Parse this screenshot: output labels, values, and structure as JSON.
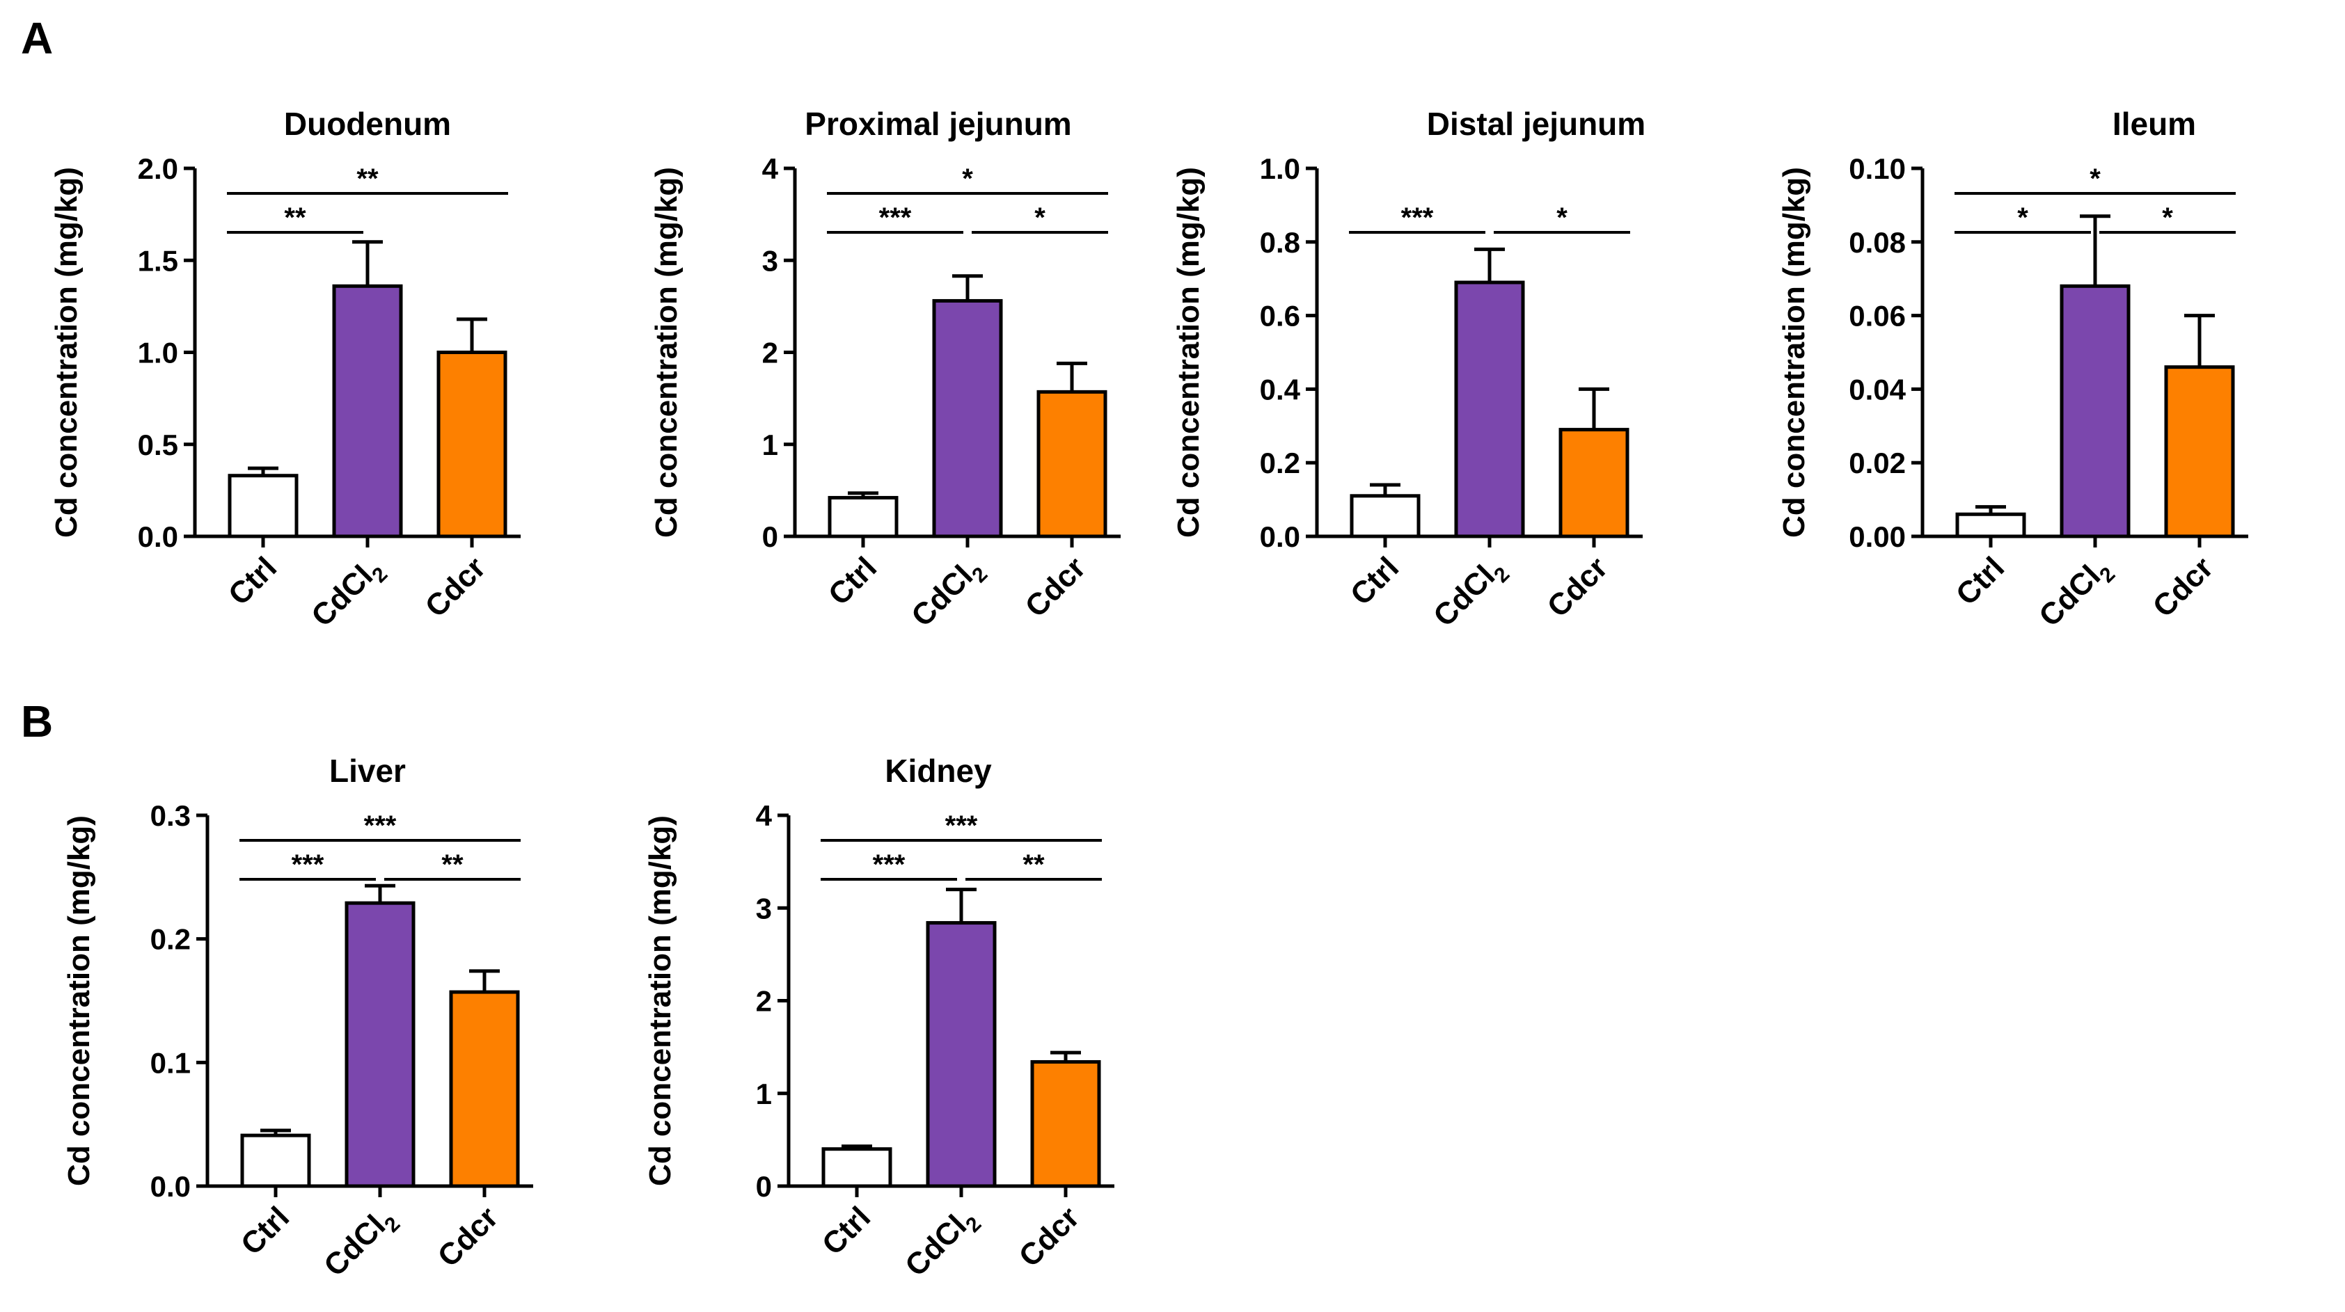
{
  "panels": [
    {
      "label": "A"
    },
    {
      "label": "B"
    }
  ],
  "colors": {
    "ctrl": "#ffffff",
    "cdcl2": "#7b47ad",
    "cdcr": "#fd8000"
  },
  "chart_data": [
    {
      "type": "bar",
      "title": "Duodenum",
      "ylabel": "Cd concentration (mg/kg)",
      "categories": [
        "Ctrl",
        "CdCl2",
        "Cdcr"
      ],
      "values": [
        0.33,
        1.36,
        1.0
      ],
      "errors": [
        0.04,
        0.24,
        0.18
      ],
      "ylim": [
        0,
        2.0
      ],
      "yticks": [
        "0.0",
        "0.5",
        "1.0",
        "1.5",
        "2.0"
      ],
      "ytick_values": [
        0,
        0.5,
        1.0,
        1.5,
        2.0
      ],
      "significance": [
        {
          "from": 0,
          "to": 1,
          "label": "**",
          "level": 1
        },
        {
          "from": 0,
          "to": 2,
          "label": "**",
          "level": 2
        }
      ]
    },
    {
      "type": "bar",
      "title": "Proximal jejunum",
      "ylabel": "Cd concentration (mg/kg)",
      "categories": [
        "Ctrl",
        "CdCl2",
        "Cdcr"
      ],
      "values": [
        0.42,
        2.56,
        1.57
      ],
      "errors": [
        0.05,
        0.27,
        0.31
      ],
      "ylim": [
        0,
        4
      ],
      "yticks": [
        "0",
        "1",
        "2",
        "3",
        "4"
      ],
      "ytick_values": [
        0,
        1,
        2,
        3,
        4
      ],
      "significance": [
        {
          "from": 0,
          "to": 1,
          "label": "***",
          "level": 1
        },
        {
          "from": 1,
          "to": 2,
          "label": "*",
          "level": 1
        },
        {
          "from": 0,
          "to": 2,
          "label": "*",
          "level": 2
        }
      ]
    },
    {
      "type": "bar",
      "title": "Distal jejunum",
      "ylabel": "Cd concentration (mg/kg)",
      "categories": [
        "Ctrl",
        "CdCl2",
        "Cdcr"
      ],
      "values": [
        0.11,
        0.69,
        0.29
      ],
      "errors": [
        0.03,
        0.09,
        0.11
      ],
      "ylim": [
        0,
        1.0
      ],
      "yticks": [
        "0.0",
        "0.2",
        "0.4",
        "0.6",
        "0.8",
        "1.0"
      ],
      "ytick_values": [
        0,
        0.2,
        0.4,
        0.6,
        0.8,
        1.0
      ],
      "significance": [
        {
          "from": 0,
          "to": 1,
          "label": "***",
          "level": 1
        },
        {
          "from": 1,
          "to": 2,
          "label": "*",
          "level": 1
        }
      ]
    },
    {
      "type": "bar",
      "title": "Ileum",
      "ylabel": "Cd concentration (mg/kg)",
      "categories": [
        "Ctrl",
        "CdCl2",
        "Cdcr"
      ],
      "values": [
        0.006,
        0.068,
        0.046
      ],
      "errors": [
        0.002,
        0.019,
        0.014
      ],
      "ylim": [
        0,
        0.1
      ],
      "yticks": [
        "0.00",
        "0.02",
        "0.04",
        "0.06",
        "0.08",
        "0.10"
      ],
      "ytick_values": [
        0,
        0.02,
        0.04,
        0.06,
        0.08,
        0.1
      ],
      "significance": [
        {
          "from": 0,
          "to": 1,
          "label": "*",
          "level": 1
        },
        {
          "from": 1,
          "to": 2,
          "label": "*",
          "level": 1
        },
        {
          "from": 0,
          "to": 2,
          "label": "*",
          "level": 2
        }
      ]
    },
    {
      "type": "bar",
      "title": "Liver",
      "ylabel": "Cd concentration (mg/kg)",
      "categories": [
        "Ctrl",
        "CdCl2",
        "Cdcr"
      ],
      "values": [
        0.041,
        0.229,
        0.157
      ],
      "errors": [
        0.004,
        0.014,
        0.017
      ],
      "ylim": [
        0,
        0.3
      ],
      "yticks": [
        "0.0",
        "0.1",
        "0.2",
        "0.3"
      ],
      "ytick_values": [
        0,
        0.1,
        0.2,
        0.3
      ],
      "significance": [
        {
          "from": 0,
          "to": 1,
          "label": "***",
          "level": 1
        },
        {
          "from": 1,
          "to": 2,
          "label": "**",
          "level": 1
        },
        {
          "from": 0,
          "to": 2,
          "label": "***",
          "level": 2
        }
      ]
    },
    {
      "type": "bar",
      "title": "Kidney",
      "ylabel": "Cd concentration (mg/kg)",
      "categories": [
        "Ctrl",
        "CdCl2",
        "Cdcr"
      ],
      "values": [
        0.4,
        2.84,
        1.34
      ],
      "errors": [
        0.03,
        0.36,
        0.1
      ],
      "ylim": [
        0,
        4
      ],
      "yticks": [
        "0",
        "1",
        "2",
        "3",
        "4"
      ],
      "ytick_values": [
        0,
        1,
        2,
        3,
        4
      ],
      "significance": [
        {
          "from": 0,
          "to": 1,
          "label": "***",
          "level": 1
        },
        {
          "from": 1,
          "to": 2,
          "label": "**",
          "level": 1
        },
        {
          "from": 0,
          "to": 2,
          "label": "***",
          "level": 2
        }
      ]
    }
  ]
}
